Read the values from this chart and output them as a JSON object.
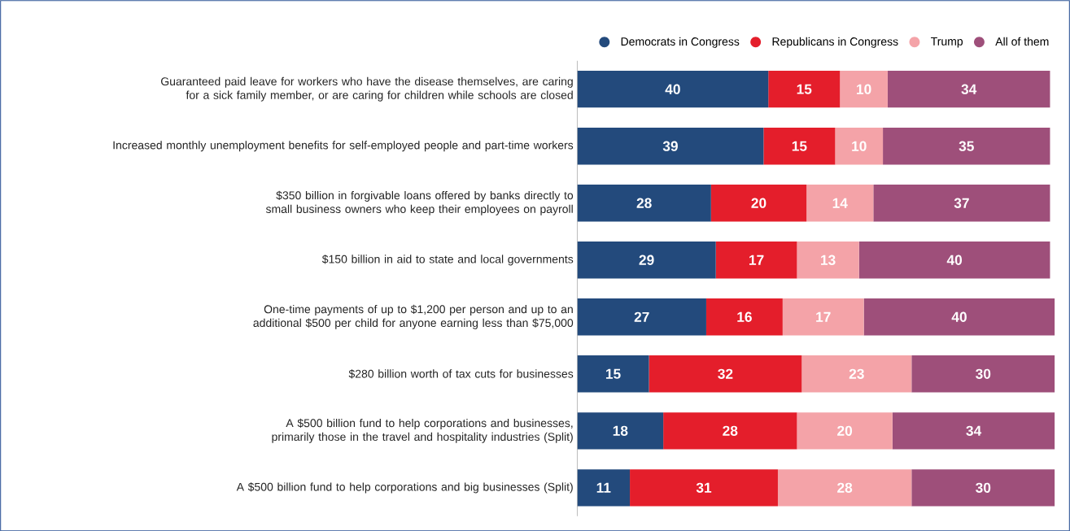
{
  "chart_data": {
    "type": "bar",
    "orientation": "horizontal",
    "stacked": true,
    "data_labels": true,
    "legend": "top right",
    "categories": [
      "Guaranteed paid leave for workers who have the disease themselves, are caring for a sick family member, or are caring for children while schools are closed",
      "Increased monthly unemployment benefits for self-employed people and part-time workers",
      "$350 billion in forgivable loans offered by banks directly to small business owners who keep their employees on payroll",
      "$150 billion in aid to state and local governments",
      "One-time payments of up to $1,200 per person and up to an additional $500 per child for anyone earning less than $75,000",
      "$280 billion worth of tax cuts for businesses",
      "A $500 billion fund to help corporations and businesses, primarily those in the travel and hospitality industries (Split)",
      "A $500 billion fund to help corporations and big businesses (Split)"
    ],
    "series": [
      {
        "name": "Democrats in Congress",
        "color": "#234a7c",
        "values": [
          40,
          39,
          28,
          29,
          27,
          15,
          18,
          11
        ]
      },
      {
        "name": "Republicans in Congress",
        "color": "#e41e2b",
        "values": [
          15,
          15,
          20,
          17,
          16,
          32,
          28,
          31
        ]
      },
      {
        "name": "Trump",
        "color": "#f4a3a8",
        "values": [
          10,
          10,
          14,
          13,
          17,
          23,
          20,
          28
        ]
      },
      {
        "name": "All of them",
        "color": "#9e4f7a",
        "values": [
          34,
          35,
          37,
          40,
          40,
          30,
          34,
          30
        ]
      }
    ]
  }
}
